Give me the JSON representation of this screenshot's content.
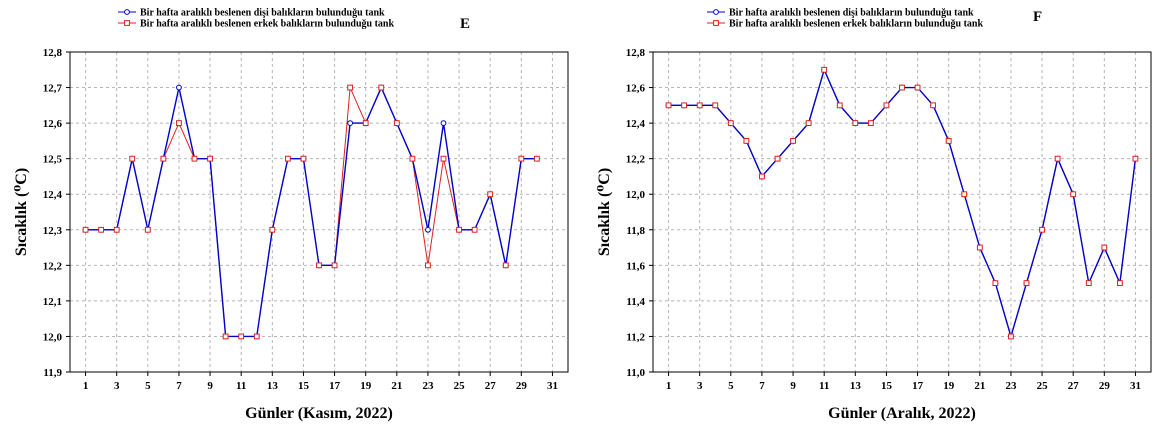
{
  "chart_data": [
    {
      "panel": "E",
      "type": "line",
      "xlabel": "Günler (Kasım, 2022)",
      "ylabel": "Sıcaklık (⁰C)",
      "ylim": [
        11.9,
        12.8
      ],
      "yticks": [
        "12,8",
        "12,7",
        "12,6",
        "12,5",
        "12,4",
        "12,3",
        "12,2",
        "12,1",
        "12,0",
        "11,9"
      ],
      "xticks": [
        "1",
        "3",
        "5",
        "7",
        "9",
        "11",
        "13",
        "15",
        "17",
        "19",
        "21",
        "23",
        "25",
        "27",
        "29",
        "31"
      ],
      "xlim": [
        0,
        32
      ],
      "grid": true,
      "legend_position": "top-center",
      "x": [
        1,
        2,
        3,
        4,
        5,
        6,
        7,
        8,
        9,
        10,
        11,
        12,
        13,
        14,
        15,
        16,
        17,
        18,
        19,
        20,
        21,
        22,
        23,
        24,
        25,
        26,
        27,
        28,
        29,
        30
      ],
      "series": [
        {
          "name": "Bir hafta aralıklı beslenen dişi balıkların bulunduğu tank",
          "color": "#0000cc",
          "marker": "circle",
          "values": [
            12.3,
            12.3,
            12.3,
            12.5,
            12.3,
            12.5,
            12.7,
            12.5,
            12.5,
            12.0,
            12.0,
            12.0,
            12.3,
            12.5,
            12.5,
            12.2,
            12.2,
            12.6,
            12.6,
            12.7,
            12.6,
            12.5,
            12.3,
            12.6,
            12.3,
            12.3,
            12.4,
            12.2,
            12.5,
            12.5
          ]
        },
        {
          "name": "Bir hafta aralıklı beslenen erkek balıkların bulunduğu tank",
          "color": "#dd2222",
          "marker": "square",
          "values": [
            12.3,
            12.3,
            12.3,
            12.5,
            12.3,
            12.5,
            12.6,
            12.5,
            12.5,
            12.0,
            12.0,
            12.0,
            12.3,
            12.5,
            12.5,
            12.2,
            12.2,
            12.7,
            12.6,
            12.7,
            12.6,
            12.5,
            12.2,
            12.5,
            12.3,
            12.3,
            12.4,
            12.2,
            12.5,
            12.5
          ]
        }
      ]
    },
    {
      "panel": "F",
      "type": "line",
      "xlabel": "Günler (Aralık, 2022)",
      "ylabel": "Sıcaklık (⁰C)",
      "ylim": [
        11.0,
        12.8
      ],
      "yticks": [
        "12,8",
        "12,6",
        "12,4",
        "12,2",
        "12,0",
        "11,8",
        "11,6",
        "11,4",
        "11,2",
        "11,0"
      ],
      "xticks": [
        "1",
        "3",
        "5",
        "7",
        "9",
        "11",
        "13",
        "15",
        "17",
        "19",
        "21",
        "23",
        "25",
        "27",
        "29",
        "31"
      ],
      "xlim": [
        0,
        32
      ],
      "grid": true,
      "legend_position": "top-center",
      "x": [
        1,
        2,
        3,
        4,
        5,
        6,
        7,
        8,
        9,
        10,
        11,
        12,
        13,
        14,
        15,
        16,
        17,
        18,
        19,
        20,
        21,
        22,
        23,
        24,
        25,
        26,
        27,
        28,
        29,
        30,
        31
      ],
      "series": [
        {
          "name": "Bir hafta aralıklı beslenen dişi balıkların bulunduğu tank",
          "color": "#0000cc",
          "marker": "circle",
          "values": [
            12.5,
            12.5,
            12.5,
            12.5,
            12.4,
            12.3,
            12.1,
            12.2,
            12.3,
            12.4,
            12.7,
            12.5,
            12.4,
            12.4,
            12.5,
            12.6,
            12.6,
            12.5,
            12.3,
            12.0,
            11.7,
            11.5,
            11.2,
            11.5,
            11.8,
            12.2,
            12.0,
            11.5,
            11.7,
            11.5,
            12.2
          ]
        },
        {
          "name": "Bir hafta aralıklı beslenen erkek balıkların bulunduğu tank",
          "color": "#dd2222",
          "marker": "square",
          "values": [
            12.5,
            12.5,
            12.5,
            12.5,
            12.4,
            12.3,
            12.1,
            12.2,
            12.3,
            12.4,
            12.7,
            12.5,
            12.4,
            12.4,
            12.5,
            12.6,
            12.6,
            12.5,
            12.3,
            12.0,
            11.7,
            11.5,
            11.2,
            11.5,
            11.8,
            12.2,
            12.0,
            11.5,
            11.7,
            11.5,
            12.2
          ]
        }
      ]
    }
  ]
}
